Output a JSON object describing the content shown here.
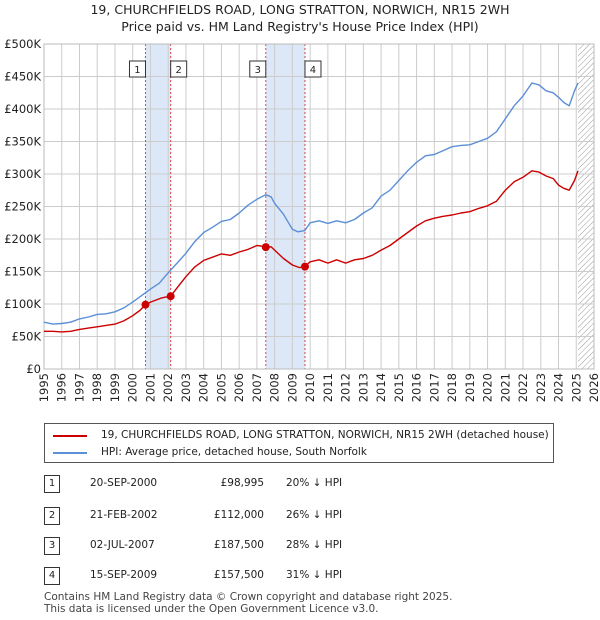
{
  "header": {
    "title_line1": "19, CHURCHFIELDS ROAD, LONG STRATTON, NORWICH, NR15 2WH",
    "title_line2": "Price paid vs. HM Land Registry's House Price Index (HPI)"
  },
  "colors": {
    "property": "#cc0000",
    "hpi": "#5b8fd6",
    "shade": "#dce8f8",
    "grid": "#cccccc",
    "vline": "#dd4444"
  },
  "chart_data": {
    "type": "line",
    "xlim": [
      1995,
      2026
    ],
    "ylim": [
      0,
      500000
    ],
    "x_ticks": [
      1995,
      1996,
      1997,
      1998,
      1999,
      2000,
      2001,
      2002,
      2003,
      2004,
      2005,
      2006,
      2007,
      2008,
      2009,
      2010,
      2011,
      2012,
      2013,
      2014,
      2015,
      2016,
      2017,
      2018,
      2019,
      2020,
      2021,
      2022,
      2023,
      2024,
      2025,
      2026
    ],
    "y_ticks": [
      {
        "value": 0,
        "label": "£0"
      },
      {
        "value": 50000,
        "label": "£50K"
      },
      {
        "value": 100000,
        "label": "£100K"
      },
      {
        "value": 150000,
        "label": "£150K"
      },
      {
        "value": 200000,
        "label": "£200K"
      },
      {
        "value": 250000,
        "label": "£250K"
      },
      {
        "value": 300000,
        "label": "£300K"
      },
      {
        "value": 350000,
        "label": "£350K"
      },
      {
        "value": 400000,
        "label": "£400K"
      },
      {
        "value": 450000,
        "label": "£450K"
      },
      {
        "value": 500000,
        "label": "£500K"
      }
    ],
    "shaded_ranges": [
      [
        2000.72,
        2002.14
      ],
      [
        2007.5,
        2009.71
      ]
    ],
    "hatch_from": 2025.1,
    "series": [
      {
        "name": "hpi",
        "label": "HPI: Average price, detached house, South Norfolk",
        "x": [
          1995.0,
          1995.5,
          1996.0,
          1996.5,
          1997.0,
          1997.5,
          1998.0,
          1998.5,
          1999.0,
          1999.5,
          2000.0,
          2000.5,
          2001.0,
          2001.5,
          2002.0,
          2002.5,
          2003.0,
          2003.5,
          2004.0,
          2004.5,
          2005.0,
          2005.5,
          2006.0,
          2006.5,
          2007.0,
          2007.5,
          2007.8,
          2008.0,
          2008.5,
          2009.0,
          2009.3,
          2009.7,
          2010.0,
          2010.5,
          2011.0,
          2011.5,
          2012.0,
          2012.5,
          2013.0,
          2013.5,
          2014.0,
          2014.5,
          2015.0,
          2015.5,
          2016.0,
          2016.5,
          2017.0,
          2017.5,
          2018.0,
          2018.5,
          2019.0,
          2019.5,
          2020.0,
          2020.5,
          2021.0,
          2021.5,
          2022.0,
          2022.5,
          2022.9,
          2023.3,
          2023.7,
          2024.0,
          2024.3,
          2024.6,
          2024.9,
          2025.1
        ],
        "values": [
          72000,
          69000,
          70000,
          72000,
          77000,
          80000,
          84000,
          85000,
          88000,
          94000,
          103000,
          113000,
          123000,
          132000,
          148000,
          163000,
          178000,
          196000,
          210000,
          218000,
          227000,
          230000,
          240000,
          252000,
          261000,
          268000,
          265000,
          255000,
          238000,
          215000,
          211000,
          213000,
          225000,
          228000,
          224000,
          228000,
          225000,
          230000,
          240000,
          248000,
          266000,
          275000,
          290000,
          305000,
          318000,
          328000,
          330000,
          336000,
          342000,
          344000,
          345000,
          350000,
          355000,
          365000,
          385000,
          405000,
          420000,
          440000,
          437000,
          428000,
          425000,
          418000,
          410000,
          405000,
          428000,
          440000
        ]
      },
      {
        "name": "property",
        "label": "19, CHURCHFIELDS ROAD, LONG STRATTON, NORWICH, NR15 2WH (detached house)",
        "x": [
          1995.0,
          1995.5,
          1996.0,
          1996.5,
          1997.0,
          1997.5,
          1998.0,
          1998.5,
          1999.0,
          1999.5,
          2000.0,
          2000.4,
          2000.72,
          2001.0,
          2001.3,
          2001.6,
          2001.9,
          2002.14,
          2002.5,
          2003.0,
          2003.5,
          2004.0,
          2004.5,
          2005.0,
          2005.5,
          2006.0,
          2006.5,
          2007.0,
          2007.3,
          2007.5,
          2007.8,
          2008.0,
          2008.5,
          2009.0,
          2009.4,
          2009.71,
          2010.0,
          2010.5,
          2011.0,
          2011.5,
          2012.0,
          2012.5,
          2013.0,
          2013.5,
          2014.0,
          2014.5,
          2015.0,
          2015.5,
          2016.0,
          2016.5,
          2017.0,
          2017.5,
          2018.0,
          2018.5,
          2019.0,
          2019.5,
          2020.0,
          2020.5,
          2021.0,
          2021.5,
          2022.0,
          2022.5,
          2022.9,
          2023.3,
          2023.7,
          2024.0,
          2024.3,
          2024.6,
          2024.9,
          2025.1
        ],
        "values": [
          58000,
          58000,
          57000,
          58000,
          61000,
          63000,
          65000,
          67000,
          69000,
          74000,
          82000,
          90000,
          98995,
          103000,
          106000,
          109000,
          111000,
          112000,
          125000,
          142000,
          157000,
          167000,
          172000,
          177000,
          175000,
          180000,
          184000,
          190000,
          189000,
          187500,
          188000,
          183000,
          170000,
          160000,
          156000,
          157500,
          165000,
          168000,
          163000,
          168000,
          163000,
          168000,
          170000,
          175000,
          183000,
          190000,
          200000,
          210000,
          220000,
          228000,
          232000,
          235000,
          237000,
          240000,
          242000,
          247000,
          251000,
          258000,
          275000,
          288000,
          295000,
          305000,
          303000,
          297000,
          293000,
          283000,
          278000,
          275000,
          290000,
          305000
        ]
      }
    ],
    "sales": [
      {
        "num": "1",
        "x": 2000.72,
        "value": 98995
      },
      {
        "num": "2",
        "x": 2002.14,
        "value": 112000
      },
      {
        "num": "3",
        "x": 2007.5,
        "value": 187500
      },
      {
        "num": "4",
        "x": 2009.71,
        "value": 157500
      }
    ]
  },
  "legend": {
    "property_label": "19, CHURCHFIELDS ROAD, LONG STRATTON, NORWICH, NR15 2WH (detached house)",
    "hpi_label": "HPI: Average price, detached house, South Norfolk"
  },
  "transactions": [
    {
      "num": "1",
      "date": "20-SEP-2000",
      "price": "£98,995",
      "hpi": "20% ↓ HPI"
    },
    {
      "num": "2",
      "date": "21-FEB-2002",
      "price": "£112,000",
      "hpi": "26% ↓ HPI"
    },
    {
      "num": "3",
      "date": "02-JUL-2007",
      "price": "£187,500",
      "hpi": "28% ↓ HPI"
    },
    {
      "num": "4",
      "date": "15-SEP-2009",
      "price": "£157,500",
      "hpi": "31% ↓ HPI"
    }
  ],
  "footer": {
    "line1": "Contains HM Land Registry data © Crown copyright and database right 2025.",
    "line2": "This data is licensed under the Open Government Licence v3.0."
  }
}
